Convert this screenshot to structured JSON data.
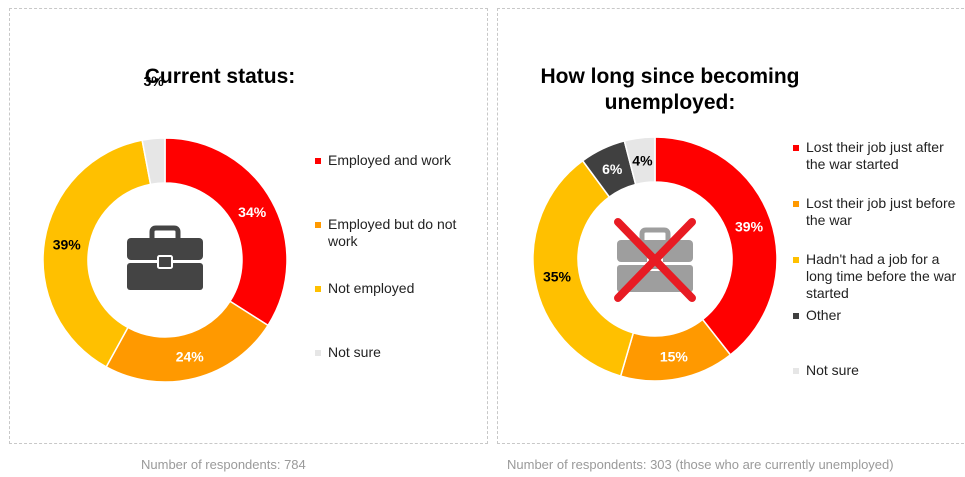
{
  "colors": {
    "red": "#ff0000",
    "orange": "#ff9900",
    "yellow": "#ffc000",
    "dark": "#404040",
    "light": "#e6e6e6",
    "icon_dark": "#444444",
    "icon_gray": "#9e9e9e",
    "cross": "#e81b23"
  },
  "chart_data": [
    {
      "type": "pie",
      "title": "Current status:",
      "categories": [
        "Employed and work",
        "Employed but do not work",
        "Not employed",
        "Not sure"
      ],
      "values": [
        34,
        24,
        39,
        3
      ],
      "labels": [
        "34%",
        "24%",
        "39%",
        "3%"
      ],
      "center_icon": "briefcase-icon",
      "footnote": "Number of respondents: 784"
    },
    {
      "type": "pie",
      "title": "How long since becoming unemployed:",
      "categories": [
        "Lost their job just after the war started",
        "Lost their job just before the war",
        "Hadn't had a job for a long time before the war started",
        "Other",
        "Not sure"
      ],
      "values": [
        39,
        15,
        35,
        6,
        4
      ],
      "labels": [
        "39%",
        "15%",
        "35%",
        "6%",
        "4%"
      ],
      "center_icon": "crossed-briefcase-icon",
      "footnote": "Number of respondents: 303 (those who are currently unemployed)"
    }
  ]
}
